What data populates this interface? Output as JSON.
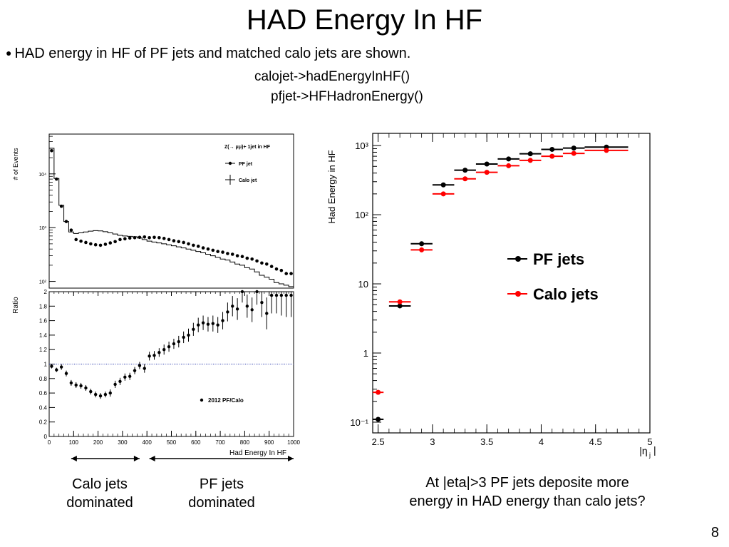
{
  "slide": {
    "title": "HAD Energy In HF",
    "bullet": "HAD energy in HF of PF jets and matched calo jets are shown.",
    "code_line1": "calojet->hadEnergyInHF()",
    "code_line2": "pfjet->HFHadronEnergy()",
    "label_calo": [
      "Calo jets",
      "dominated"
    ],
    "label_pf": [
      "PF jets",
      "dominated"
    ],
    "question": [
      "At |eta|>3 PF jets deposite more",
      "energy in HAD energy than calo jets?"
    ],
    "page_number": "8"
  },
  "chart_data": [
    {
      "type": "histogram",
      "title": "Z(→ μμ)+ 1jet in HF",
      "ylabel": "# of Events",
      "log_y": true,
      "ylim": [
        75,
        55000
      ],
      "yticks": [
        "10²",
        "10³",
        "10⁴"
      ],
      "xlim": [
        0,
        1000
      ],
      "legend": [
        "PF jet",
        "Calo jet"
      ],
      "legend_position": "top-right",
      "x": [
        10,
        30,
        50,
        70,
        90,
        110,
        130,
        150,
        170,
        190,
        210,
        230,
        250,
        270,
        290,
        310,
        330,
        350,
        370,
        390,
        410,
        430,
        450,
        470,
        490,
        510,
        530,
        550,
        570,
        590,
        610,
        630,
        650,
        670,
        690,
        710,
        730,
        750,
        770,
        790,
        810,
        830,
        850,
        870,
        890,
        910,
        930,
        950,
        970,
        990
      ],
      "series": [
        {
          "name": "PF jet",
          "style": "points",
          "values": [
            27000,
            8000,
            2500,
            1300,
            900,
            600,
            560,
            530,
            500,
            480,
            470,
            490,
            520,
            550,
            600,
            620,
            640,
            650,
            660,
            670,
            650,
            660,
            650,
            630,
            600,
            570,
            550,
            530,
            500,
            470,
            450,
            420,
            400,
            380,
            360,
            350,
            330,
            320,
            300,
            290,
            270,
            260,
            240,
            220,
            210,
            190,
            170,
            160,
            140,
            140
          ]
        },
        {
          "name": "Calo jet",
          "style": "step",
          "values": [
            30000,
            8200,
            2600,
            1300,
            830,
            780,
            800,
            830,
            860,
            880,
            870,
            840,
            800,
            760,
            720,
            700,
            690,
            680,
            640,
            600,
            560,
            540,
            520,
            500,
            480,
            460,
            440,
            420,
            400,
            380,
            360,
            340,
            320,
            300,
            280,
            260,
            250,
            230,
            210,
            200,
            180,
            170,
            150,
            130,
            120,
            110,
            95,
            90,
            85,
            80
          ]
        }
      ]
    },
    {
      "type": "scatter",
      "ylabel": "Ratio",
      "xlabel": "Had Energy In HF",
      "xlim": [
        0,
        1000
      ],
      "ylim": [
        0,
        2
      ],
      "xticks": [
        0,
        100,
        200,
        300,
        400,
        500,
        600,
        700,
        800,
        900,
        1000
      ],
      "yticks": [
        0,
        0.2,
        0.4,
        0.6,
        0.8,
        1,
        1.2,
        1.4,
        1.6,
        1.8,
        2
      ],
      "reference_line": 1,
      "legend": [
        "2012 PF/Calo"
      ],
      "series": [
        {
          "name": "2012 PF/Calo",
          "x": [
            10,
            30,
            50,
            70,
            90,
            110,
            130,
            150,
            170,
            190,
            210,
            230,
            250,
            270,
            290,
            310,
            330,
            350,
            370,
            390,
            410,
            430,
            450,
            470,
            490,
            510,
            530,
            550,
            570,
            590,
            610,
            630,
            650,
            670,
            690,
            710,
            730,
            750,
            770,
            790,
            810,
            830,
            850,
            870,
            890,
            910,
            930,
            950,
            970,
            990
          ],
          "y": [
            0.97,
            0.92,
            0.96,
            0.87,
            0.74,
            0.71,
            0.7,
            0.67,
            0.62,
            0.58,
            0.56,
            0.58,
            0.6,
            0.72,
            0.76,
            0.82,
            0.83,
            0.91,
            0.98,
            0.94,
            1.11,
            1.12,
            1.16,
            1.2,
            1.24,
            1.28,
            1.31,
            1.37,
            1.4,
            1.48,
            1.54,
            1.57,
            1.55,
            1.56,
            1.54,
            1.6,
            1.72,
            1.8,
            1.76,
            2.0,
            1.8,
            1.75,
            2.0,
            1.85,
            1.7,
            1.95,
            1.95,
            1.95,
            1.95,
            1.95
          ],
          "err": [
            0.03,
            0.03,
            0.04,
            0.04,
            0.04,
            0.04,
            0.04,
            0.04,
            0.04,
            0.04,
            0.04,
            0.04,
            0.05,
            0.05,
            0.05,
            0.05,
            0.05,
            0.05,
            0.05,
            0.06,
            0.06,
            0.06,
            0.06,
            0.07,
            0.07,
            0.07,
            0.08,
            0.08,
            0.09,
            0.09,
            0.1,
            0.1,
            0.1,
            0.11,
            0.11,
            0.12,
            0.13,
            0.14,
            0.15,
            0.15,
            0.16,
            0.17,
            0.18,
            0.2,
            0.22,
            0.25,
            0.25,
            0.28,
            0.3,
            0.3
          ]
        }
      ],
      "annotation_ranges": [
        {
          "from": 90,
          "to": 370,
          "label": "Calo jets dominated"
        },
        {
          "from": 410,
          "to": 1000,
          "label": "PF jets dominated"
        }
      ]
    },
    {
      "type": "scatter",
      "ylabel": "Had Energy in HF",
      "xlabel": "|η_j|",
      "log_y": true,
      "xlim": [
        2.45,
        5
      ],
      "ylim": [
        0.07,
        1500
      ],
      "xticks": [
        "2.5",
        "3",
        "3.5",
        "4",
        "4.5",
        "5"
      ],
      "yticks": [
        "10⁻¹",
        "1",
        "10",
        "10²",
        "10³"
      ],
      "legend": [
        "PF jets",
        "Calo jets"
      ],
      "legend_position": "center-right",
      "colors": {
        "PF jets": "#000000",
        "Calo jets": "#ff0000"
      },
      "series": [
        {
          "name": "PF jets",
          "x": [
            2.5,
            2.7,
            2.9,
            3.1,
            3.3,
            3.5,
            3.7,
            3.9,
            4.1,
            4.3,
            4.6
          ],
          "xerr": [
            0.05,
            0.1,
            0.1,
            0.1,
            0.1,
            0.1,
            0.1,
            0.1,
            0.1,
            0.1,
            0.2
          ],
          "y": [
            0.11,
            4.8,
            38,
            270,
            440,
            540,
            640,
            760,
            880,
            920,
            950
          ]
        },
        {
          "name": "Calo jets",
          "x": [
            2.5,
            2.7,
            2.9,
            3.1,
            3.3,
            3.5,
            3.7,
            3.9,
            4.1,
            4.3,
            4.6
          ],
          "xerr": [
            0.05,
            0.1,
            0.1,
            0.1,
            0.1,
            0.1,
            0.1,
            0.1,
            0.1,
            0.1,
            0.2
          ],
          "y": [
            0.27,
            5.5,
            31,
            200,
            330,
            410,
            510,
            610,
            700,
            770,
            850
          ]
        }
      ]
    }
  ]
}
